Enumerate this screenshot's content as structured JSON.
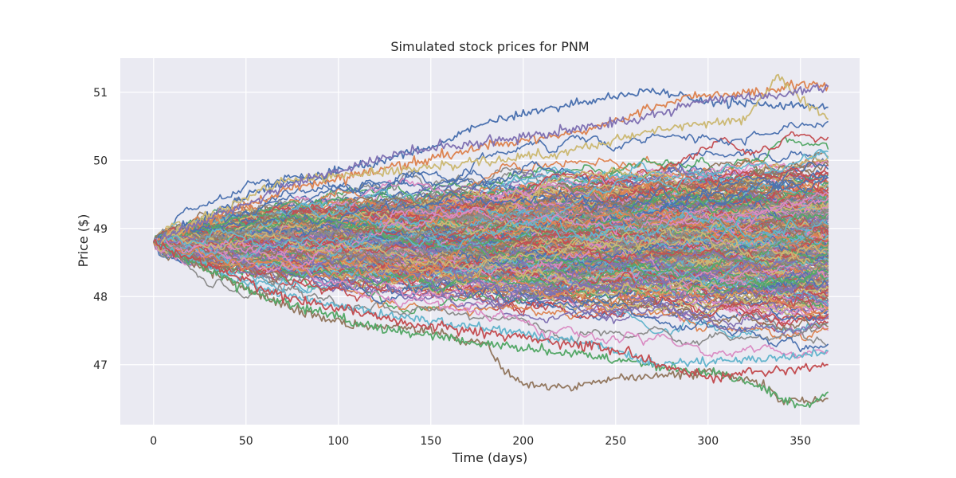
{
  "chart_data": {
    "type": "line",
    "title": "Simulated stock prices for PNM",
    "xlabel": "Time (days)",
    "ylabel": "Price ($)",
    "xlim": [
      -18,
      382
    ],
    "ylim": [
      46.12,
      51.5
    ],
    "x_ticks": [
      0,
      50,
      100,
      150,
      200,
      250,
      300,
      350
    ],
    "y_ticks": [
      47,
      48,
      49,
      50,
      51
    ],
    "grid": true,
    "legend": "none",
    "background": "#eaeaf2",
    "grid_color": "#ffffff",
    "palette": [
      "#4c72b0",
      "#dd8452",
      "#55a868",
      "#c44e52",
      "#8172b3",
      "#937860",
      "#da8bc3",
      "#8c8c8c",
      "#ccb974",
      "#64b5cd"
    ],
    "simulation": {
      "num_paths": 400,
      "days": [
        0,
        365
      ],
      "start_price": 48.8,
      "daily_volatility": 0.03,
      "highlighted_paths": [
        {
          "color": "#4c72b0",
          "points": [
            [
              0,
              48.8
            ],
            [
              60,
              49.6
            ],
            [
              120,
              49.95
            ],
            [
              150,
              50.2
            ],
            [
              180,
              50.55
            ],
            [
              220,
              50.8
            ],
            [
              270,
              51.03
            ],
            [
              300,
              50.85
            ],
            [
              340,
              50.8
            ],
            [
              365,
              50.78
            ]
          ]
        },
        {
          "color": "#dd8452",
          "points": [
            [
              0,
              48.8
            ],
            [
              70,
              49.55
            ],
            [
              130,
              49.9
            ],
            [
              180,
              50.2
            ],
            [
              230,
              50.4
            ],
            [
              290,
              50.95
            ],
            [
              330,
              51.0
            ],
            [
              350,
              51.1
            ],
            [
              365,
              51.1
            ]
          ]
        },
        {
          "color": "#ccb974",
          "points": [
            [
              0,
              48.8
            ],
            [
              70,
              49.7
            ],
            [
              150,
              49.9
            ],
            [
              220,
              50.1
            ],
            [
              280,
              50.5
            ],
            [
              320,
              50.6
            ],
            [
              338,
              51.25
            ],
            [
              350,
              50.9
            ],
            [
              365,
              50.6
            ]
          ]
        },
        {
          "color": "#8172b3",
          "points": [
            [
              0,
              48.8
            ],
            [
              80,
              49.7
            ],
            [
              140,
              50.15
            ],
            [
              200,
              50.35
            ],
            [
              260,
              50.6
            ],
            [
              300,
              50.9
            ],
            [
              340,
              50.95
            ],
            [
              365,
              51.08
            ]
          ]
        },
        {
          "color": "#937860",
          "points": [
            [
              0,
              48.8
            ],
            [
              50,
              48.1
            ],
            [
              100,
              47.6
            ],
            [
              150,
              47.5
            ],
            [
              180,
              47.3
            ],
            [
              190,
              46.9
            ],
            [
              200,
              46.72
            ],
            [
              225,
              46.65
            ],
            [
              250,
              46.8
            ],
            [
              280,
              46.85
            ],
            [
              300,
              46.9
            ],
            [
              330,
              46.7
            ],
            [
              340,
              46.45
            ],
            [
              365,
              46.5
            ]
          ]
        },
        {
          "color": "#55a868",
          "points": [
            [
              0,
              48.8
            ],
            [
              60,
              48.0
            ],
            [
              120,
              47.55
            ],
            [
              180,
              47.3
            ],
            [
              230,
              47.15
            ],
            [
              280,
              46.95
            ],
            [
              310,
              46.85
            ],
            [
              330,
              46.65
            ],
            [
              345,
              46.45
            ],
            [
              355,
              46.4
            ],
            [
              365,
              46.6
            ]
          ]
        },
        {
          "color": "#64b5cd",
          "points": [
            [
              0,
              48.8
            ],
            [
              60,
              48.1
            ],
            [
              130,
              47.7
            ],
            [
              190,
              47.5
            ],
            [
              240,
              47.3
            ],
            [
              270,
              47.0
            ],
            [
              300,
              47.05
            ],
            [
              340,
              47.1
            ],
            [
              365,
              47.2
            ]
          ]
        },
        {
          "color": "#c44e52",
          "points": [
            [
              0,
              48.8
            ],
            [
              70,
              48.0
            ],
            [
              140,
              47.6
            ],
            [
              200,
              47.4
            ],
            [
              250,
              47.2
            ],
            [
              300,
              46.8
            ],
            [
              330,
              46.9
            ],
            [
              365,
              47.0
            ]
          ]
        }
      ]
    }
  }
}
